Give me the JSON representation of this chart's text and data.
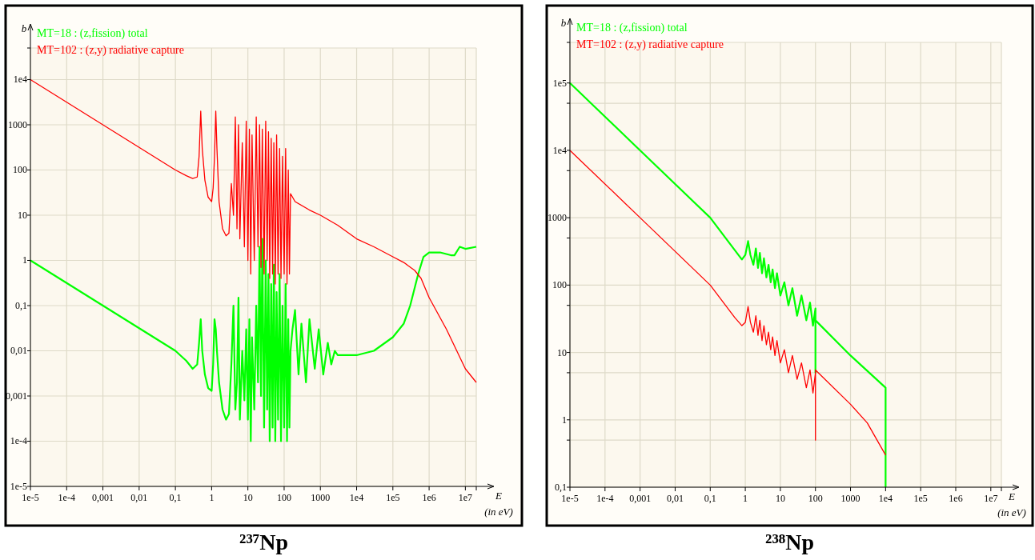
{
  "chart_data": [
    {
      "type": "line",
      "title": "²³⁷Np",
      "xlabel": "E (in eV)",
      "ylabel": "b",
      "log": "xy",
      "grid": true,
      "legend": "top left",
      "xlim": [
        1e-05,
        20000000.0
      ],
      "xticks": [
        {
          "value": 1e-05,
          "label": "1e-5"
        },
        {
          "value": 0.0001,
          "label": "1e-4"
        },
        {
          "value": 0.001,
          "label": "0,001"
        },
        {
          "value": 0.01,
          "label": "0,01"
        },
        {
          "value": 0.1,
          "label": "0,1"
        },
        1,
        10,
        100,
        1000,
        {
          "value": 10000.0,
          "label": "1e4"
        },
        {
          "value": 100000.0,
          "label": "1e5"
        },
        {
          "value": 1000000.0,
          "label": "1e6"
        },
        {
          "value": 10000000.0,
          "label": "1e7"
        },
        {
          "value": 20000000.0,
          "label": null
        }
      ],
      "ylim": [
        1e-05,
        50000.0
      ],
      "yticks": [
        {
          "value": 1e-05,
          "label": "1e-5"
        },
        {
          "value": 0.0001,
          "label": "1e-4"
        },
        {
          "value": 0.001,
          "label": "0,001"
        },
        {
          "value": 0.01,
          "label": "0,01"
        },
        {
          "value": 0.1,
          "label": "0,1"
        },
        1,
        10,
        100,
        1000,
        {
          "value": 10000.0,
          "label": "1e4"
        },
        {
          "value": 50000.0,
          "label": null
        }
      ],
      "series": [
        {
          "name": "MT=18 : (z,fission) total",
          "color": "#00ff00",
          "x": [
            1e-05,
            0.001,
            0.1,
            0.2,
            0.3,
            0.4,
            0.45,
            0.5,
            0.55,
            0.65,
            0.8,
            1,
            1.1,
            1.2,
            1.3,
            1.4,
            1.6,
            2,
            2.5,
            3,
            3.5,
            4,
            4.5,
            5,
            5.5,
            6,
            7,
            8,
            9,
            10,
            11,
            12,
            13,
            15,
            17,
            19,
            21,
            23,
            25,
            28,
            31,
            34,
            37,
            40,
            44,
            48,
            52,
            57,
            62,
            68,
            75,
            82,
            90,
            100,
            110,
            120,
            130,
            140,
            150,
            170,
            200,
            250,
            300,
            400,
            500,
            700,
            900,
            1200,
            1600,
            2000,
            2500,
            3000,
            5000,
            10000.0,
            30000.0,
            100000.0,
            200000.0,
            300000.0,
            500000.0,
            700000.0,
            1000000.0,
            2000000.0,
            4000000.0,
            5000000.0,
            7000000.0,
            10000000.0,
            20000000.0
          ],
          "values": [
            1,
            0.1,
            0.01,
            0.006,
            0.004,
            0.005,
            0.015,
            0.05,
            0.01,
            0.003,
            0.0015,
            0.0013,
            0.005,
            0.05,
            0.03,
            0.01,
            0.002,
            0.0005,
            0.0003,
            0.0004,
            0.005,
            0.1,
            0.0005,
            0.002,
            0.15,
            0.0003,
            0.01,
            0.0008,
            0.03,
            0.0003,
            0.05,
            0.0001,
            0.02,
            0.0005,
            0.1,
            0.002,
            2,
            0.001,
            3,
            0.0002,
            1,
            0.0005,
            0.5,
            0.0001,
            0.3,
            0.0002,
            0.8,
            0.0001,
            0.2,
            0.0003,
            0.5,
            0.0001,
            0.1,
            0.0002,
            0.3,
            0.0001,
            0.05,
            0.0002,
            0.01,
            0.03,
            0.08,
            0.003,
            0.04,
            0.002,
            0.05,
            0.004,
            0.03,
            0.003,
            0.015,
            0.005,
            0.01,
            0.008,
            0.008,
            0.008,
            0.01,
            0.02,
            0.04,
            0.1,
            0.5,
            1.2,
            1.5,
            1.5,
            1.3,
            1.3,
            2,
            1.8,
            2
          ]
        },
        {
          "name": "MT=102 : (z,y) radiative capture",
          "color": "#ff0000",
          "x": [
            1e-05,
            0.0001,
            0.001,
            0.01,
            0.1,
            0.2,
            0.3,
            0.4,
            0.45,
            0.5,
            0.55,
            0.65,
            0.8,
            1,
            1.1,
            1.2,
            1.3,
            1.4,
            1.6,
            2,
            2.5,
            3,
            3.5,
            4,
            4.5,
            5,
            5.5,
            6,
            7,
            8,
            9,
            10,
            11,
            12,
            13,
            15,
            17,
            19,
            21,
            23,
            25,
            28,
            31,
            34,
            37,
            40,
            44,
            48,
            52,
            57,
            62,
            68,
            75,
            82,
            90,
            100,
            110,
            120,
            130,
            140,
            150,
            200,
            500,
            1000,
            3000,
            10000.0,
            30000.0,
            100000.0,
            200000.0,
            400000.0,
            600000.0,
            1000000.0,
            3000000.0,
            10000000.0,
            20000000.0
          ],
          "values": [
            10000.0,
            3162,
            1000,
            316,
            100,
            75,
            65,
            70,
            200,
            2000,
            300,
            60,
            25,
            20,
            40,
            200,
            2000,
            300,
            20,
            5,
            3.5,
            4,
            50,
            10,
            1500,
            5,
            1000,
            3,
            400,
            2,
            1200,
            1,
            800,
            0.5,
            600,
            1,
            1500,
            2,
            1000,
            0.7,
            800,
            0.5,
            1200,
            1,
            700,
            0.4,
            500,
            0.5,
            400,
            0.3,
            600,
            0.5,
            300,
            0.4,
            200,
            0.5,
            300,
            0.3,
            100,
            0.5,
            30,
            20,
            13,
            10,
            6,
            3,
            2,
            1.2,
            0.9,
            0.6,
            0.4,
            0.15,
            0.03,
            0.004,
            0.002
          ]
        }
      ]
    },
    {
      "type": "line",
      "title": "²³⁸Np",
      "xlabel": "E (in eV)",
      "ylabel": "b",
      "log": "xy",
      "grid": true,
      "legend": "top left",
      "xlim": [
        1e-05,
        20000000.0
      ],
      "xticks": [
        {
          "value": 1e-05,
          "label": "1e-5"
        },
        {
          "value": 0.0001,
          "label": "1e-4"
        },
        {
          "value": 0.001,
          "label": "0,001"
        },
        {
          "value": 0.01,
          "label": "0,01"
        },
        {
          "value": 0.1,
          "label": "0,1"
        },
        1,
        10,
        100,
        1000,
        {
          "value": 10000.0,
          "label": "1e4"
        },
        {
          "value": 100000.0,
          "label": "1e5"
        },
        {
          "value": 1000000.0,
          "label": "1e6"
        },
        {
          "value": 10000000.0,
          "label": "1e7"
        },
        {
          "value": 20000000.0,
          "label": null
        }
      ],
      "ylim": [
        0.1,
        400000.0
      ],
      "yticks": [
        {
          "value": 0.1,
          "label": "0,1"
        },
        {
          "value": 0.5,
          "label": null
        },
        1,
        {
          "value": 5,
          "label": null
        },
        10,
        {
          "value": 50,
          "label": null
        },
        100,
        {
          "value": 500,
          "label": null
        },
        1000,
        {
          "value": 5000,
          "label": null
        },
        {
          "value": 10000.0,
          "label": "1e4"
        },
        {
          "value": 50000.0,
          "label": null
        },
        {
          "value": 100000.0,
          "label": "1e5"
        },
        {
          "value": 400000.0,
          "label": null
        }
      ],
      "series": [
        {
          "name": "MT=18 : (z,fission) total",
          "color": "#00ff00",
          "x": [
            1e-05,
            0.001,
            0.1,
            0.5,
            0.8,
            1,
            1.2,
            1.4,
            1.7,
            2,
            2.3,
            2.6,
            3,
            3.4,
            4,
            4.6,
            5.3,
            6,
            7,
            8,
            10,
            13,
            17,
            22,
            30,
            40,
            55,
            70,
            85,
            100,
            100,
            100,
            1000,
            10000.0,
            10000.0
          ],
          "values": [
            100000.0,
            10000.0,
            1000,
            330,
            240,
            280,
            450,
            280,
            200,
            350,
            180,
            300,
            150,
            250,
            130,
            200,
            110,
            170,
            90,
            150,
            70,
            110,
            50,
            90,
            35,
            70,
            30,
            55,
            25,
            45,
            5,
            30,
            9,
            3,
            0.1
          ]
        },
        {
          "name": "MT=102 : (z,y) radiative capture",
          "color": "#ff0000",
          "x": [
            1e-05,
            0.001,
            0.1,
            0.5,
            0.8,
            1,
            1.2,
            1.4,
            1.7,
            2,
            2.3,
            2.6,
            3,
            3.4,
            4,
            4.6,
            5.3,
            6,
            7,
            8,
            10,
            13,
            17,
            22,
            30,
            40,
            55,
            70,
            85,
            100,
            100,
            100,
            1000,
            3000,
            10000.0
          ],
          "values": [
            10000.0,
            1000,
            100,
            33,
            25,
            28,
            48,
            28,
            20,
            35,
            18,
            30,
            15,
            25,
            13,
            20,
            11,
            17,
            9,
            15,
            7,
            11,
            5,
            9,
            4,
            7,
            3,
            5.5,
            2.5,
            5,
            0.5,
            5.5,
            1.7,
            0.9,
            0.3
          ]
        }
      ]
    }
  ]
}
